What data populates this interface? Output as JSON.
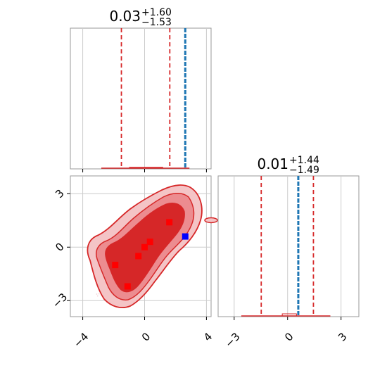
{
  "chart_data": {
    "type": "corner",
    "colors": {
      "hist": "#d62728",
      "contour_edge": "#d62728",
      "contour_fill_light": "#f4c4c6",
      "contour_fill_mid": "#ec8c90",
      "contour_fill_dark": "#d62728",
      "truth": "#1f77b4",
      "samples_marker": "#ff0000",
      "truth_marker": "#0000ff",
      "grid": "#cccccc",
      "frame": "#999999"
    },
    "param_0": {
      "title_main": "0.03",
      "title_plus": "+1.60",
      "title_minus": "−1.53",
      "median": 0.03,
      "q_low": -1.5,
      "q_high": 1.63,
      "truth": 2.63,
      "range": [
        -4.8,
        4.3
      ],
      "ticks": [
        -4,
        0,
        4
      ],
      "tick_labels": [
        "−4",
        "0",
        "4"
      ]
    },
    "param_1": {
      "title_main": "0.01",
      "title_plus": "+1.44",
      "title_minus": "−1.49",
      "median": 0.01,
      "q_low": -1.48,
      "q_high": 1.45,
      "truth": 0.6,
      "range": [
        -3.9,
        4.0
      ],
      "ticks": [
        -3,
        0,
        3
      ],
      "tick_labels": [
        "−3",
        "0",
        "3"
      ]
    },
    "samples": [
      {
        "x": -1.9,
        "y": -1.0
      },
      {
        "x": -1.1,
        "y": -2.2
      },
      {
        "x": -0.4,
        "y": -0.5
      },
      {
        "x": 0.0,
        "y": 0.0
      },
      {
        "x": 0.35,
        "y": 0.3
      },
      {
        "x": 1.6,
        "y": 1.4
      }
    ],
    "truth_point": {
      "x": 2.63,
      "y": 0.6
    },
    "grid": true
  }
}
